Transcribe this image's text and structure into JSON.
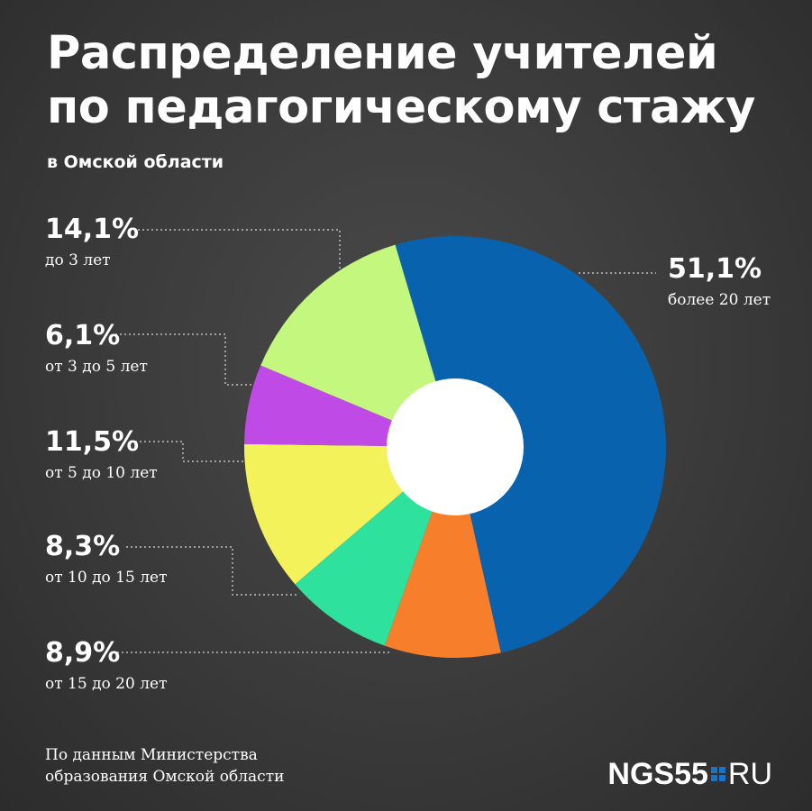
{
  "title_lines": [
    "Распределение учителей",
    "по педагогическому стажу"
  ],
  "subtitle": "в Омской области",
  "source_lines": [
    "По данным Министерства",
    "образования Омской области"
  ],
  "logo": {
    "main": "NGS55",
    "suffix": "RU"
  },
  "chart_data": {
    "type": "pie",
    "title": "Распределение учителей по педагогическому стажу",
    "subtitle": "в Омской области",
    "unit": "%",
    "slices": [
      {
        "label": "более 20 лет",
        "value": 51.1,
        "display": "51,1%",
        "color": "#0862ad"
      },
      {
        "label": "от 15 до 20 лет",
        "value": 8.9,
        "display": "8,9%",
        "color": "#f77e2a"
      },
      {
        "label": "от 10 до 15 лет",
        "value": 8.3,
        "display": "8,3%",
        "color": "#2ee29e"
      },
      {
        "label": "от 5 до 10 лет",
        "value": 11.5,
        "display": "11,5%",
        "color": "#f4f25b"
      },
      {
        "label": "от 3 до 5 лет",
        "value": 6.1,
        "display": "6,1%",
        "color": "#c04ae6"
      },
      {
        "label": "до 3 лет",
        "value": 14.1,
        "display": "14,1%",
        "color": "#c3f77d"
      }
    ]
  }
}
